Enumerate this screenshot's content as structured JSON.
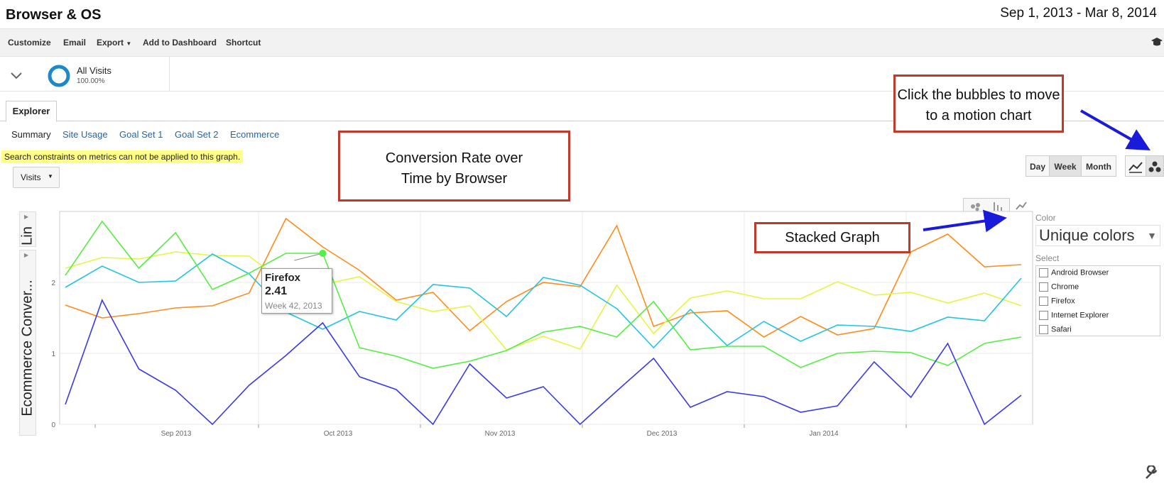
{
  "header": {
    "title": "Browser & OS",
    "date_range": "Sep 1, 2013 - Mar 8, 2014"
  },
  "toolbar": {
    "customize": "Customize",
    "email": "Email",
    "export": "Export",
    "add_to_dashboard": "Add to Dashboard",
    "shortcut": "Shortcut"
  },
  "segment": {
    "name": "All Visits",
    "percent": "100.00%"
  },
  "tabs": {
    "explorer": "Explorer"
  },
  "subnav": [
    "Summary",
    "Site Usage",
    "Goal Set 1",
    "Goal Set 2",
    "Ecommerce"
  ],
  "warning": "Search constraints on metrics can not be applied to this graph.",
  "metric_dropdown": "Visits",
  "period_buttons": {
    "day": "Day",
    "week": "Week",
    "month": "Month"
  },
  "annotations": {
    "title": "Conversion Rate over Time by Browser",
    "bubbles": "Click the bubbles to move to a motion chart",
    "stacked": "Stacked Graph"
  },
  "side_labels": {
    "lin": "Lin",
    "y_axis": "Ecommerce Conver..."
  },
  "color_panel": {
    "label": "Color",
    "value": "Unique colors",
    "select_label": "Select",
    "browsers": [
      "Android Browser",
      "Chrome",
      "Firefox",
      "Internet Explorer",
      "Safari"
    ]
  },
  "tooltip": {
    "name": "Firefox",
    "value": "2.41",
    "week": "Week 42, 2013"
  },
  "colors": {
    "link": "#2266aa",
    "callout_border": "#c0392b",
    "warning_bg": "#ffff88",
    "arrow": "#1a1adb"
  },
  "chart_data": {
    "type": "line",
    "ylabel": "Ecommerce Conver...",
    "ylim": [
      0,
      3
    ],
    "yticks": [
      0,
      1,
      2
    ],
    "x_labels": [
      "Sep 2013",
      "Oct 2013",
      "Nov 2013",
      "Dec 2013",
      "Jan 2014"
    ],
    "series": [
      {
        "color": "#ff8c1a",
        "values": [
          1.68,
          1.5,
          1.56,
          1.64,
          1.67,
          1.85,
          2.9,
          2.5,
          2.17,
          1.75,
          1.86,
          1.32,
          1.73,
          2.0,
          1.94,
          2.8,
          1.38,
          1.57,
          1.6,
          1.23,
          1.52,
          1.26,
          1.35,
          2.43,
          2.68,
          2.22,
          2.25
        ]
      },
      {
        "color": "#e6f542",
        "values": [
          2.2,
          2.35,
          2.33,
          2.43,
          2.38,
          2.37,
          1.98,
          1.97,
          2.08,
          1.73,
          1.59,
          1.67,
          1.05,
          1.24,
          1.06,
          1.96,
          1.28,
          1.78,
          1.88,
          1.77,
          1.77,
          2.01,
          1.82,
          1.86,
          1.71,
          1.85,
          1.67
        ]
      },
      {
        "color": "#22c4e0",
        "values": [
          1.93,
          2.23,
          2.0,
          2.02,
          2.4,
          2.12,
          1.58,
          1.34,
          1.59,
          1.47,
          1.97,
          1.92,
          1.52,
          2.07,
          1.96,
          1.63,
          1.08,
          1.62,
          1.11,
          1.45,
          1.17,
          1.4,
          1.38,
          1.31,
          1.51,
          1.46,
          2.06
        ]
      },
      {
        "color": "#55ee44",
        "values": [
          2.1,
          2.86,
          2.2,
          2.7,
          1.9,
          2.13,
          2.41,
          2.41,
          1.08,
          0.96,
          0.79,
          0.89,
          1.04,
          1.3,
          1.38,
          1.23,
          1.73,
          1.05,
          1.1,
          1.1,
          0.8,
          1.0,
          1.03,
          1.01,
          0.83,
          1.14,
          1.23
        ]
      },
      {
        "color": "#3a3ae8",
        "values": [
          0.28,
          1.75,
          0.78,
          0.48,
          0.0,
          0.55,
          0.97,
          1.43,
          0.67,
          0.49,
          0.0,
          0.85,
          0.37,
          0.53,
          0.0,
          0.47,
          0.93,
          0.24,
          0.46,
          0.39,
          0.17,
          0.26,
          0.88,
          0.38,
          1.14,
          0.0,
          0.41
        ]
      }
    ],
    "highlight": {
      "series_index": 3,
      "point_index": 7
    },
    "grid": true
  }
}
